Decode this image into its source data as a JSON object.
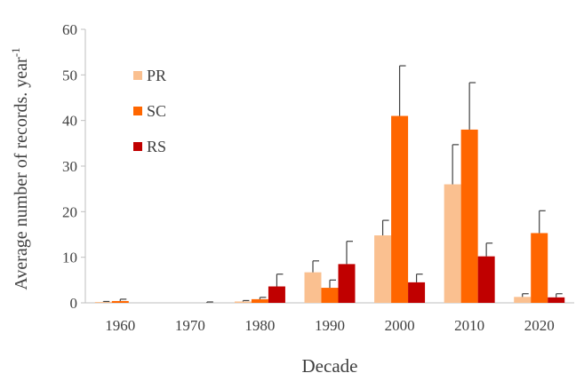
{
  "chart_data": {
    "type": "bar",
    "title": "",
    "xlabel": "Decade",
    "ylabel": "Average  number of records. year",
    "ylabel_superscript": "-1",
    "categories": [
      "1960",
      "1970",
      "1980",
      "1990",
      "2000",
      "2010",
      "2020"
    ],
    "ylim": [
      0,
      60
    ],
    "yticks": [
      "0",
      "10",
      "20",
      "30",
      "40",
      "50",
      "60"
    ],
    "grid": false,
    "legend_position": "upper-left",
    "error_bars": true,
    "series": [
      {
        "name": "PR",
        "color": "#FAC090",
        "values": [
          0.2,
          0,
          0.3,
          6.7,
          14.8,
          26,
          1.3
        ],
        "errors": [
          0.1,
          0,
          0.2,
          2.5,
          3.3,
          8.7,
          0.7
        ]
      },
      {
        "name": "SC",
        "color": "#FF6600",
        "values": [
          0.4,
          0,
          0.8,
          3.3,
          41,
          38,
          15.3
        ],
        "errors": [
          0.4,
          0,
          0.4,
          1.7,
          11,
          10.3,
          4.9
        ]
      },
      {
        "name": "RS",
        "color": "#C00000",
        "values": [
          0,
          0,
          3.6,
          8.5,
          4.5,
          10.2,
          1.2
        ],
        "errors": [
          0,
          0.2,
          2.7,
          5,
          1.8,
          2.9,
          0.8
        ]
      }
    ]
  }
}
